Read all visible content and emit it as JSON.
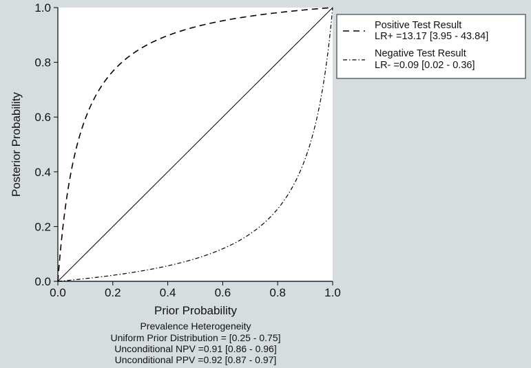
{
  "colors": {
    "background": "#d6dde1",
    "plot_area": "#ffffff",
    "line": "#000000"
  },
  "chart_data": {
    "type": "line",
    "xlabel": "Prior Probability",
    "ylabel": "Posterior Probability",
    "xlim": [
      0,
      1
    ],
    "ylim": [
      0,
      1
    ],
    "x_ticks": [
      "0.0",
      "0.2",
      "0.4",
      "0.6",
      "0.8",
      "1.0"
    ],
    "y_ticks": [
      "0.0",
      "0.2",
      "0.4",
      "0.6",
      "0.8",
      "1.0"
    ],
    "grid": false,
    "legend_position": "top-right",
    "series": [
      {
        "name": "Positive Test Result",
        "label2": "LR+ =13.17 [3.95 - 43.84]",
        "style": "dashed",
        "likelihood_ratio": 13.17,
        "x": [
          0,
          0.01,
          0.02,
          0.04,
          0.06,
          0.08,
          0.1,
          0.15,
          0.2,
          0.25,
          0.3,
          0.4,
          0.5,
          0.6,
          0.7,
          0.8,
          0.9,
          1.0
        ],
        "y": [
          0,
          0.117,
          0.212,
          0.354,
          0.457,
          0.534,
          0.594,
          0.699,
          0.767,
          0.814,
          0.849,
          0.898,
          0.929,
          0.952,
          0.968,
          0.981,
          0.992,
          1.0
        ]
      },
      {
        "name": "Negative Test Result",
        "label2": "LR- =0.09 [0.02 - 0.36]",
        "style": "dash-dot",
        "likelihood_ratio": 0.09,
        "x": [
          0,
          0.1,
          0.2,
          0.3,
          0.4,
          0.5,
          0.6,
          0.7,
          0.8,
          0.85,
          0.9,
          0.95,
          0.98,
          1.0
        ],
        "y": [
          0,
          0.01,
          0.022,
          0.037,
          0.057,
          0.083,
          0.119,
          0.174,
          0.265,
          0.338,
          0.448,
          0.631,
          0.815,
          1.0
        ]
      },
      {
        "name": "",
        "style": "solid",
        "x": [
          0,
          1
        ],
        "y": [
          0,
          1
        ]
      }
    ],
    "notes": [
      "Prevalence Heterogeneity",
      "Uniform Prior Distribution = [0.25 - 0.75]",
      "Unconditional NPV =0.91 [0.86 - 0.96]",
      "Unconditional PPV =0.92 [0.87 - 0.97]"
    ]
  }
}
